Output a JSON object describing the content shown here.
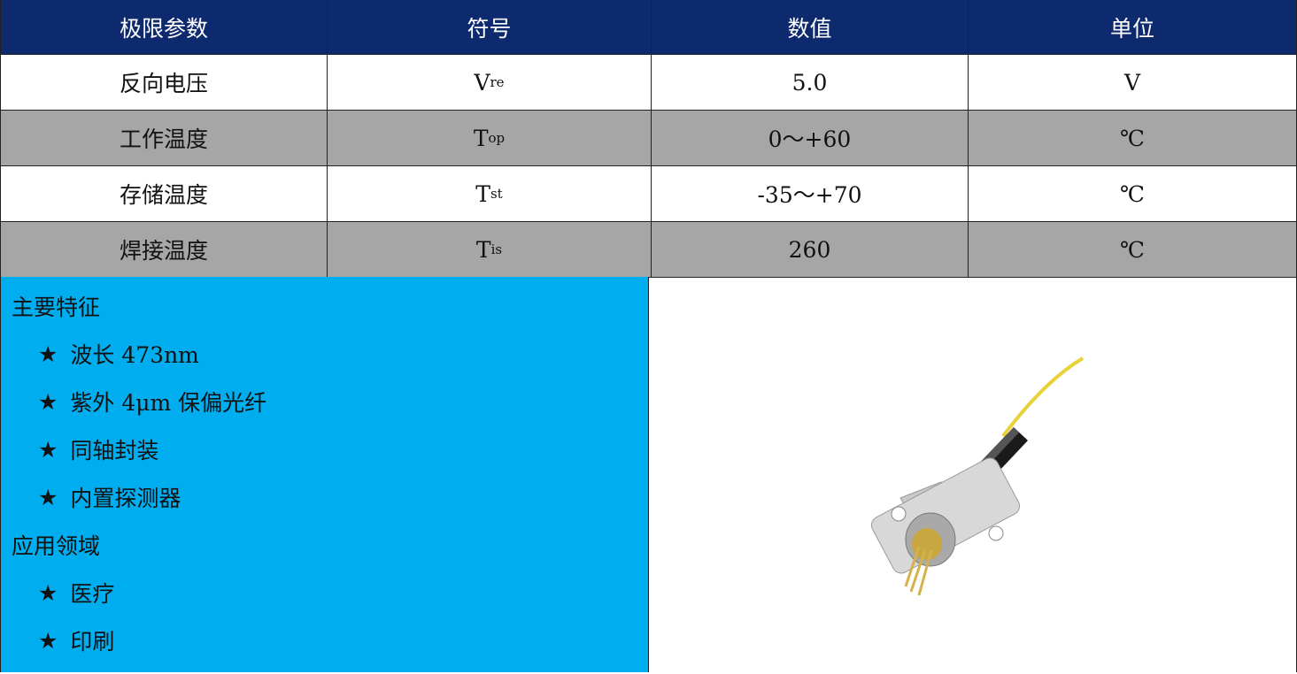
{
  "table": {
    "header": [
      "极限参数",
      "符号",
      "数值",
      "单位"
    ],
    "rows": [
      [
        {
          "text": "反向电压"
        },
        {
          "base": "V",
          "sub": "re"
        },
        {
          "text": "5.0"
        },
        {
          "text": "V"
        }
      ],
      [
        {
          "text": "工作温度"
        },
        {
          "base": "T",
          "sub": "op"
        },
        {
          "text": "0～+60"
        },
        {
          "text": "℃"
        }
      ],
      [
        {
          "text": "存储温度"
        },
        {
          "base": "T",
          "sub": "st"
        },
        {
          "text": "-35～+70"
        },
        {
          "text": "℃"
        }
      ],
      [
        {
          "text": "焊接温度"
        },
        {
          "base": "T",
          "sub": "is"
        },
        {
          "text": "260"
        },
        {
          "text": "℃"
        }
      ]
    ]
  },
  "bullet": "★",
  "sections": [
    {
      "title": "主要特征",
      "items": [
        "波长 473nm",
        "紫外 4μm 保偏光纤",
        "同轴封装",
        "内置探测器"
      ]
    },
    {
      "title": "应用领域",
      "items": [
        "医疗",
        "印刷"
      ]
    }
  ]
}
